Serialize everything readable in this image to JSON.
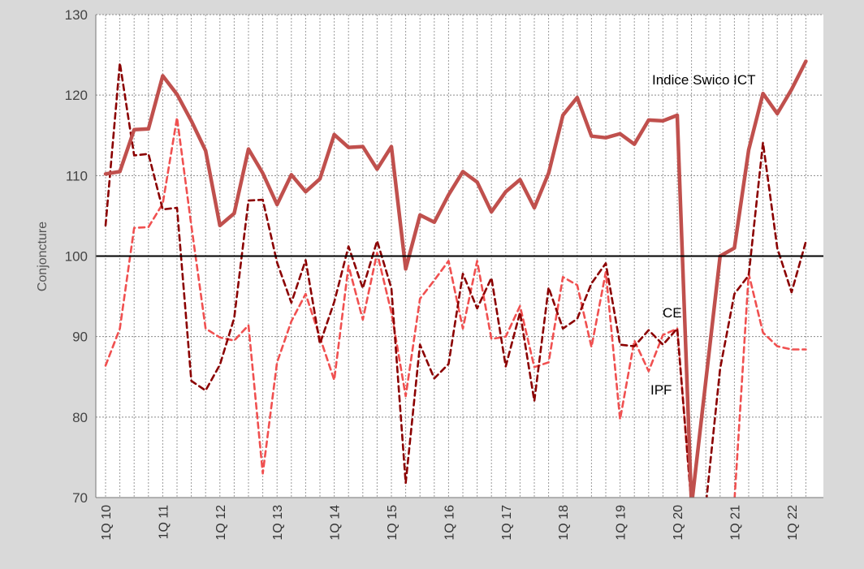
{
  "chart_data": {
    "type": "line",
    "ylabel": "Conjoncture",
    "ylim": [
      70,
      130
    ],
    "yticks": [
      70,
      80,
      90,
      100,
      110,
      120,
      130
    ],
    "x_tick_labels": [
      "1Q 10",
      "1Q 11",
      "1Q 12",
      "1Q 13",
      "1Q 14",
      "1Q 15",
      "1Q 16",
      "1Q 17",
      "1Q 18",
      "1Q 19",
      "1Q 20",
      "1Q 21",
      "1Q 22"
    ],
    "x": [
      "1Q 10",
      "2Q 10",
      "3Q 10",
      "4Q 10",
      "1Q 11",
      "2Q 11",
      "3Q 11",
      "4Q 11",
      "1Q 12",
      "2Q 12",
      "3Q 12",
      "4Q 12",
      "1Q 13",
      "2Q 13",
      "3Q 13",
      "4Q 13",
      "1Q 14",
      "2Q 14",
      "3Q 14",
      "4Q 14",
      "1Q 15",
      "2Q 15",
      "3Q 15",
      "4Q 15",
      "1Q 16",
      "2Q 16",
      "3Q 16",
      "4Q 16",
      "1Q 17",
      "2Q 17",
      "3Q 17",
      "4Q 17",
      "1Q 18",
      "2Q 18",
      "3Q 18",
      "4Q 18",
      "1Q 19",
      "2Q 19",
      "3Q 19",
      "4Q 19",
      "1Q 20",
      "2Q 20",
      "3Q 20",
      "4Q 20",
      "1Q 21",
      "2Q 21",
      "3Q 21",
      "4Q 21",
      "1Q 22",
      "2Q 22"
    ],
    "reference_line": 100,
    "grid": true,
    "series": [
      {
        "name": "Indice Swico ICT",
        "style": "solid",
        "color": "#c0504d",
        "values": [
          110.2,
          110.5,
          115.7,
          115.8,
          122.4,
          120.1,
          116.8,
          113.1,
          103.8,
          105.3,
          113.3,
          110.3,
          106.4,
          110.1,
          108.0,
          109.6,
          115.1,
          113.5,
          113.6,
          110.8,
          113.6,
          98.4,
          105.1,
          104.2,
          107.6,
          110.5,
          109.2,
          105.5,
          108.0,
          109.5,
          106.0,
          110.3,
          117.5,
          119.7,
          114.9,
          114.7,
          115.2,
          113.9,
          116.9,
          116.8,
          117.5,
          69.0,
          84.5,
          100.0,
          101.0,
          113.2,
          120.2,
          117.7,
          120.7,
          124.2
        ]
      },
      {
        "name": "CE",
        "style": "dashed",
        "color": "#8b0000",
        "values": [
          103.8,
          124.0,
          112.5,
          112.7,
          105.8,
          106.0,
          84.5,
          83.3,
          86.5,
          92.3,
          106.9,
          107.0,
          99.2,
          94.2,
          99.5,
          89.1,
          94.3,
          101.2,
          96.0,
          101.9,
          96.0,
          71.8,
          89.0,
          84.8,
          86.6,
          97.8,
          93.5,
          97.3,
          86.3,
          93.0,
          82.0,
          96.1,
          91.0,
          92.2,
          96.6,
          99.1,
          89.0,
          88.8,
          90.8,
          89.0,
          91.0,
          69.0,
          69.0,
          86.0,
          95.3,
          97.6,
          114.1,
          101.0,
          95.5,
          101.8
        ]
      },
      {
        "name": "IPF",
        "style": "dashed",
        "color": "#f05050",
        "values": [
          86.4,
          91.0,
          103.5,
          103.6,
          106.5,
          117.2,
          103.8,
          91.0,
          89.9,
          89.5,
          91.4,
          73.0,
          86.8,
          91.9,
          95.3,
          89.9,
          84.6,
          98.8,
          92.1,
          100.4,
          93.0,
          82.6,
          94.7,
          97.0,
          99.4,
          91.0,
          99.4,
          89.7,
          90.0,
          93.8,
          86.2,
          86.8,
          97.4,
          96.4,
          88.7,
          98.0,
          79.7,
          89.5,
          85.7,
          90.2,
          91.0,
          69.0,
          69.0,
          69.0,
          69.5,
          97.8,
          90.5,
          88.8,
          88.4,
          88.4
        ]
      }
    ],
    "annotations": [
      {
        "text": "Indice Swico ICT",
        "series": "Indice Swico ICT"
      },
      {
        "text": "CE",
        "series": "CE"
      },
      {
        "text": "IPF",
        "series": "IPF"
      }
    ]
  }
}
